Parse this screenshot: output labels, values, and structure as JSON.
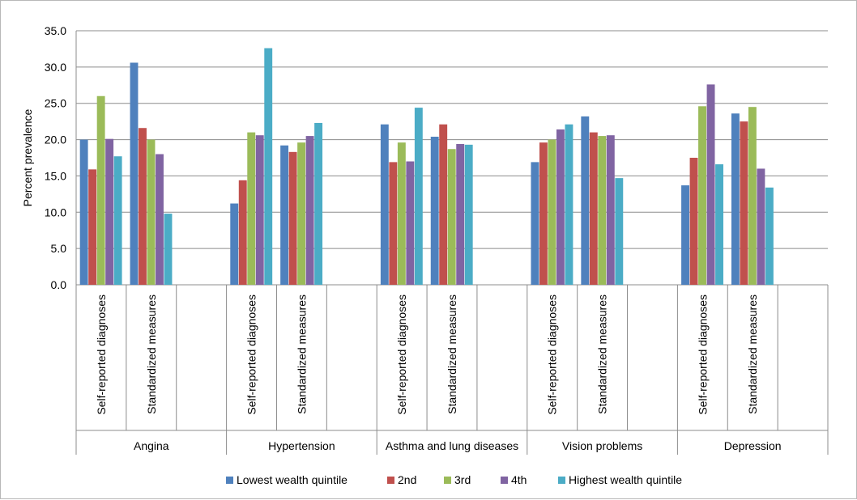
{
  "chart_data": {
    "type": "bar",
    "ylabel": "Percent prevalence",
    "ylim": [
      0,
      35
    ],
    "yticks": [
      "35.0",
      "30.0",
      "25.0",
      "20.0",
      "15.0",
      "10.0",
      "5.0",
      "0.0"
    ],
    "grid": true,
    "legend_position": "bottom",
    "groups": [
      {
        "label": "Angina",
        "subcategories": [
          "Self-reported diagnoses",
          "Standardized measures"
        ]
      },
      {
        "label": "Hypertension",
        "subcategories": [
          "Self-reported diagnoses",
          "Standardized measures"
        ]
      },
      {
        "label": "Asthma and lung diseases",
        "subcategories": [
          "Self-reported diagnoses",
          "Standardized measures"
        ]
      },
      {
        "label": "Vision problems",
        "subcategories": [
          "Self-reported diagnoses",
          "Standardized measures"
        ]
      },
      {
        "label": "Depression",
        "subcategories": [
          "Self-reported diagnoses",
          "Standardized measures"
        ]
      }
    ],
    "series": [
      {
        "name": "Lowest wealth quintile",
        "color": "#4F81BD",
        "values": [
          20.0,
          30.6,
          11.2,
          19.2,
          22.1,
          20.4,
          16.9,
          23.2,
          13.7,
          23.6
        ]
      },
      {
        "name": "2nd",
        "color": "#C0504D",
        "values": [
          15.9,
          21.6,
          14.4,
          18.3,
          16.9,
          22.1,
          19.6,
          21.0,
          17.5,
          22.5
        ]
      },
      {
        "name": "3rd",
        "color": "#9BBB59",
        "values": [
          26.0,
          20.0,
          21.0,
          19.6,
          19.6,
          18.7,
          20.0,
          20.5,
          24.6,
          24.5
        ]
      },
      {
        "name": "4th",
        "color": "#8064A2",
        "values": [
          20.1,
          18.0,
          20.6,
          20.5,
          17.0,
          19.4,
          21.4,
          20.6,
          27.6,
          16.0
        ]
      },
      {
        "name": "Highest wealth quintile",
        "color": "#4BACC6",
        "values": [
          17.7,
          9.8,
          32.6,
          22.3,
          24.4,
          19.3,
          22.1,
          14.7,
          16.6,
          13.4
        ]
      }
    ]
  }
}
